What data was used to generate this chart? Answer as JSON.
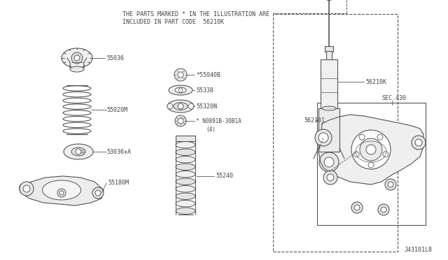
{
  "bg_color": "#ffffff",
  "line_color": "#555555",
  "text_color": "#444444",
  "header_line1": "THE PARTS MARKED * IN THE ILLUSTRATION ARE",
  "header_line2": "INCLUDED IN PART CODE  56210K",
  "footer": "J43101L8",
  "fig_width": 6.4,
  "fig_height": 3.72,
  "dpi": 100
}
